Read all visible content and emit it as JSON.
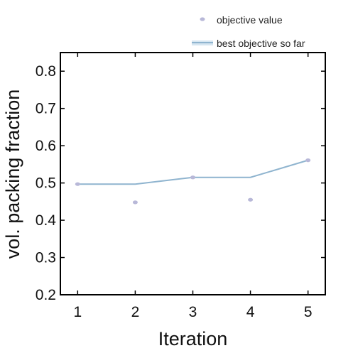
{
  "chart_data": {
    "type": "line",
    "title": "",
    "xlabel": "Iteration",
    "ylabel": "vol. packing fraction",
    "x": [
      1,
      2,
      3,
      4,
      5
    ],
    "xticks": [
      "1",
      "2",
      "3",
      "4",
      "5"
    ],
    "yticks": [
      "0.2",
      "0.3",
      "0.4",
      "0.5",
      "0.6",
      "0.7",
      "0.8"
    ],
    "xlim": [
      0.7,
      5.3
    ],
    "ylim": [
      0.2,
      0.85
    ],
    "grid": false,
    "legend_position": "top-right, outside plot",
    "series": [
      {
        "name": "objective value",
        "type": "scatter",
        "values": [
          0.497,
          0.448,
          0.515,
          0.455,
          0.561
        ],
        "color": "#b8b8d8"
      },
      {
        "name": "best objective so far",
        "type": "line",
        "values": [
          0.497,
          0.497,
          0.515,
          0.515,
          0.561
        ],
        "color": "#8fb4cf"
      }
    ]
  }
}
